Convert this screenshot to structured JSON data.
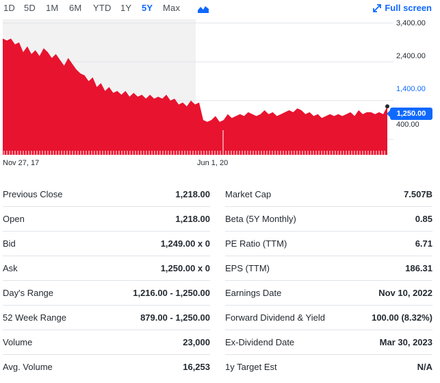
{
  "ranges": [
    {
      "label": "1D",
      "active": false
    },
    {
      "label": "5D",
      "active": false
    },
    {
      "label": "1M",
      "active": false
    },
    {
      "label": "6M",
      "active": false
    },
    {
      "label": "YTD",
      "active": false
    },
    {
      "label": "1Y",
      "active": false
    },
    {
      "label": "5Y",
      "active": true
    },
    {
      "label": "Max",
      "active": false
    }
  ],
  "chart_type_icon": "mountain-chart-icon",
  "fullscreen": {
    "label": "Full screen",
    "icon": "expand-arrows-icon"
  },
  "colors": {
    "accent": "#0f69ff",
    "area": "#e8132f",
    "shade": "#f2f2f2"
  },
  "chart_data": {
    "type": "area",
    "y_ticks": [
      "3,400.00",
      "2,400.00",
      "1,400.00",
      "400.00"
    ],
    "ylim": [
      0,
      3500
    ],
    "x_ticks": [
      "Nov 27, 17",
      "Jun 1, 20"
    ],
    "current_price": "1,250.00",
    "series": [
      {
        "values": [
          3000,
          2950,
          3000,
          2850,
          2900,
          2650,
          2800,
          2600,
          2700,
          2550,
          2750,
          2650,
          2500,
          2600,
          2450,
          2300,
          2500,
          2350,
          2200,
          2100,
          2050,
          1900,
          2000,
          1750,
          1850,
          1650,
          1750,
          1600,
          1650,
          1550,
          1650,
          1500,
          1600,
          1500,
          1550,
          1450,
          1550,
          1450,
          1500,
          1450,
          1550,
          1400,
          1450,
          1300,
          1350,
          1250,
          1400,
          1300,
          1350,
          900,
          850,
          900,
          1000,
          850,
          900,
          1050,
          950,
          1000,
          1050,
          1000,
          1100,
          1050,
          1000,
          1050,
          1150,
          1050,
          1100,
          1000,
          1050,
          1100,
          1150,
          1100,
          1200,
          1150,
          1050,
          1100,
          1000,
          1050,
          950,
          1000,
          1050,
          1000,
          1050,
          1000,
          1050,
          1100,
          1000,
          1150,
          1050,
          1100,
          1100,
          1050,
          1100,
          1050,
          1250
        ]
      }
    ]
  },
  "stats": {
    "left": [
      {
        "label": "Previous Close",
        "value": "1,218.00"
      },
      {
        "label": "Open",
        "value": "1,218.00"
      },
      {
        "label": "Bid",
        "value": "1,249.00 x 0"
      },
      {
        "label": "Ask",
        "value": "1,250.00 x 0"
      },
      {
        "label": "Day's Range",
        "value": "1,216.00 - 1,250.00"
      },
      {
        "label": "52 Week Range",
        "value": "879.00 - 1,250.00"
      },
      {
        "label": "Volume",
        "value": "23,000"
      },
      {
        "label": "Avg. Volume",
        "value": "16,253"
      }
    ],
    "right": [
      {
        "label": "Market Cap",
        "value": "7.507B"
      },
      {
        "label": "Beta (5Y Monthly)",
        "value": "0.85"
      },
      {
        "label": "PE Ratio (TTM)",
        "value": "6.71"
      },
      {
        "label": "EPS (TTM)",
        "value": "186.31"
      },
      {
        "label": "Earnings Date",
        "value": "Nov 10, 2022"
      },
      {
        "label": "Forward Dividend & Yield",
        "value": "100.00 (8.32%)"
      },
      {
        "label": "Ex-Dividend Date",
        "value": "Mar 30, 2023"
      },
      {
        "label": "1y Target Est",
        "value": "N/A"
      }
    ]
  }
}
